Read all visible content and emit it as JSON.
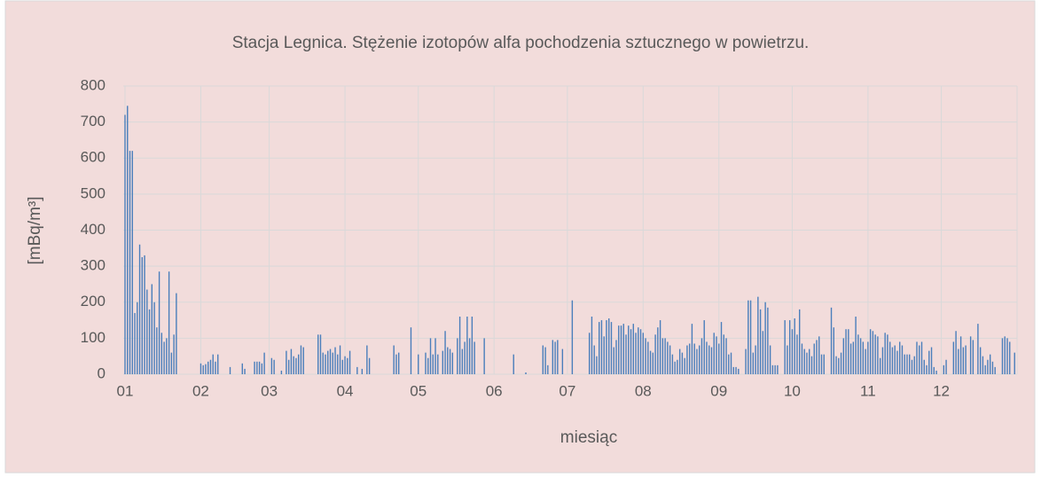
{
  "chart_data": {
    "type": "bar",
    "title": "Stacja Legnica. Stężenie izotopów alfa pochodzenia sztucznego w powietrzu.",
    "xlabel": "miesiąc",
    "ylabel": "[mBq/m³]",
    "color": "#4a7ebb",
    "grid": true,
    "xlim": [
      1,
      366
    ],
    "ylim": [
      0,
      800
    ],
    "yticks": [
      0,
      100,
      200,
      300,
      400,
      500,
      600,
      700,
      800
    ],
    "xticks": [
      {
        "value": 1,
        "label": "01"
      },
      {
        "value": 32,
        "label": "02"
      },
      {
        "value": 60,
        "label": "03"
      },
      {
        "value": 91,
        "label": "04"
      },
      {
        "value": 121,
        "label": "05"
      },
      {
        "value": 152,
        "label": "06"
      },
      {
        "value": 182,
        "label": "07"
      },
      {
        "value": 213,
        "label": "08"
      },
      {
        "value": 244,
        "label": "09"
      },
      {
        "value": 274,
        "label": "10"
      },
      {
        "value": 305,
        "label": "11"
      },
      {
        "value": 335,
        "label": "12"
      }
    ],
    "x": [
      1,
      2,
      3,
      4,
      5,
      6,
      7,
      8,
      9,
      10,
      11,
      12,
      13,
      14,
      15,
      16,
      17,
      18,
      19,
      20,
      21,
      22,
      32,
      33,
      34,
      35,
      36,
      37,
      38,
      39,
      44,
      49,
      50,
      54,
      55,
      56,
      57,
      58,
      61,
      62,
      65,
      67,
      68,
      69,
      70,
      71,
      72,
      73,
      74,
      80,
      81,
      82,
      83,
      84,
      85,
      86,
      87,
      88,
      89,
      90,
      91,
      92,
      93,
      96,
      98,
      100,
      101,
      111,
      112,
      113,
      118,
      121,
      124,
      125,
      126,
      127,
      128,
      129,
      131,
      132,
      133,
      134,
      135,
      137,
      138,
      139,
      140,
      141,
      142,
      143,
      144,
      148,
      160,
      165,
      172,
      173,
      174,
      176,
      177,
      178,
      180,
      184,
      191,
      192,
      193,
      194,
      195,
      196,
      197,
      198,
      199,
      200,
      201,
      202,
      203,
      204,
      205,
      206,
      207,
      208,
      209,
      210,
      211,
      212,
      213,
      214,
      215,
      216,
      217,
      218,
      219,
      220,
      221,
      222,
      223,
      224,
      225,
      226,
      227,
      228,
      229,
      230,
      231,
      232,
      233,
      234,
      235,
      236,
      237,
      238,
      239,
      240,
      241,
      242,
      243,
      244,
      245,
      246,
      247,
      248,
      249,
      250,
      251,
      252,
      255,
      256,
      257,
      258,
      259,
      260,
      261,
      262,
      263,
      264,
      265,
      266,
      267,
      268,
      271,
      272,
      273,
      274,
      275,
      276,
      277,
      278,
      279,
      280,
      281,
      282,
      283,
      284,
      285,
      286,
      287,
      290,
      291,
      292,
      293,
      294,
      295,
      296,
      297,
      298,
      299,
      300,
      301,
      302,
      303,
      304,
      305,
      306,
      307,
      308,
      309,
      310,
      311,
      312,
      313,
      314,
      315,
      316,
      317,
      318,
      319,
      320,
      321,
      322,
      323,
      324,
      325,
      326,
      327,
      328,
      329,
      330,
      331,
      332,
      333,
      336,
      337,
      340,
      341,
      342,
      343,
      344,
      345,
      347,
      348,
      350,
      351,
      352,
      353,
      354,
      355,
      356,
      357,
      360,
      361,
      362,
      363,
      365
    ],
    "values": [
      720,
      745,
      620,
      620,
      170,
      200,
      360,
      325,
      330,
      235,
      180,
      250,
      200,
      130,
      285,
      115,
      90,
      100,
      285,
      60,
      110,
      225,
      30,
      25,
      28,
      35,
      40,
      55,
      35,
      55,
      20,
      30,
      15,
      35,
      35,
      35,
      30,
      60,
      45,
      40,
      10,
      65,
      40,
      70,
      50,
      45,
      55,
      80,
      75,
      110,
      110,
      60,
      55,
      65,
      70,
      60,
      75,
      55,
      80,
      40,
      50,
      45,
      65,
      20,
      15,
      80,
      45,
      80,
      55,
      60,
      130,
      55,
      60,
      45,
      100,
      55,
      100,
      55,
      65,
      120,
      75,
      70,
      60,
      100,
      160,
      70,
      90,
      160,
      100,
      160,
      90,
      100,
      55,
      5,
      80,
      75,
      25,
      95,
      90,
      95,
      70,
      205,
      115,
      160,
      80,
      50,
      145,
      150,
      105,
      150,
      155,
      145,
      75,
      95,
      135,
      135,
      140,
      110,
      135,
      125,
      140,
      115,
      130,
      125,
      115,
      100,
      90,
      65,
      60,
      110,
      130,
      150,
      100,
      100,
      90,
      80,
      55,
      35,
      40,
      70,
      60,
      45,
      80,
      85,
      140,
      85,
      70,
      80,
      100,
      150,
      90,
      80,
      75,
      115,
      105,
      85,
      145,
      110,
      100,
      55,
      60,
      20,
      20,
      15,
      70,
      205,
      205,
      60,
      80,
      215,
      180,
      120,
      200,
      185,
      80,
      25,
      25,
      25,
      150,
      80,
      150,
      125,
      155,
      110,
      180,
      85,
      70,
      60,
      70,
      50,
      85,
      95,
      105,
      55,
      55,
      185,
      130,
      50,
      45,
      60,
      100,
      125,
      125,
      85,
      90,
      160,
      110,
      100,
      90,
      70,
      90,
      125,
      120,
      110,
      105,
      45,
      75,
      115,
      110,
      90,
      75,
      80,
      65,
      90,
      80,
      55,
      55,
      55,
      40,
      50,
      90,
      80,
      90,
      40,
      25,
      65,
      75,
      20,
      10,
      25,
      40,
      90,
      120,
      70,
      105,
      75,
      80,
      105,
      95,
      140,
      75,
      50,
      25,
      40,
      55,
      35,
      20,
      100,
      105,
      100,
      90,
      60
    ]
  }
}
